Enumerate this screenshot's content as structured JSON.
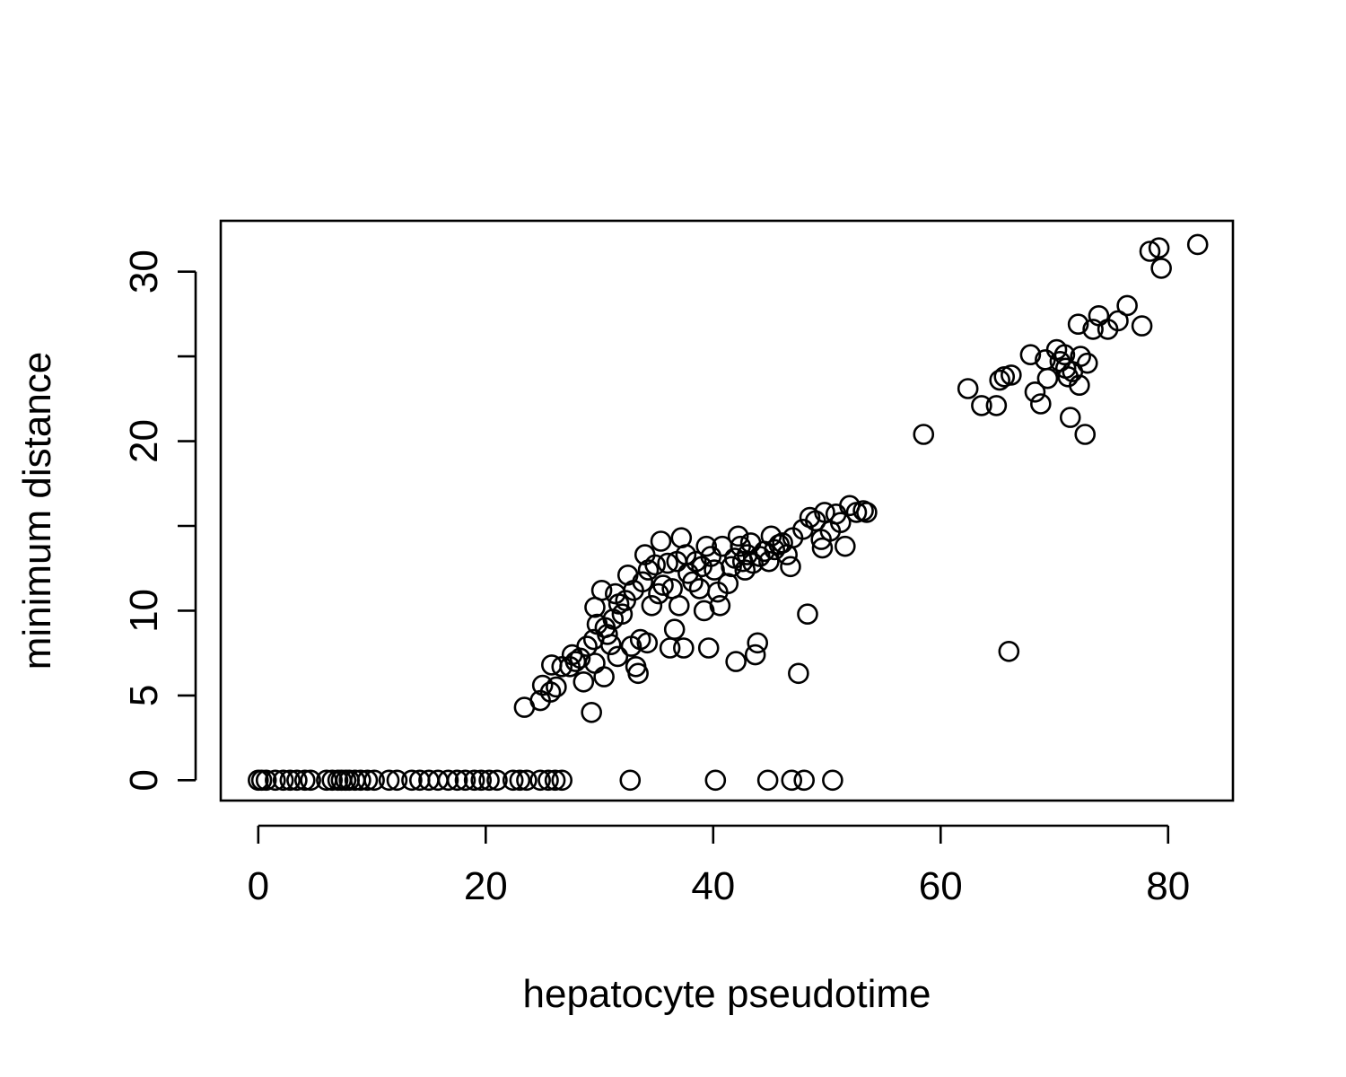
{
  "chart_data": {
    "type": "scatter",
    "title": "",
    "xlabel": "hepatocyte pseudotime",
    "ylabel": "minimum distance",
    "xlim": [
      -3.3,
      85.7
    ],
    "ylim": [
      -1.2,
      33.0
    ],
    "xticks": [
      0,
      20,
      40,
      60,
      80
    ],
    "xtick_labels": [
      "0",
      "20",
      "40",
      "60",
      "80"
    ],
    "yticks": [
      0,
      5,
      10,
      15,
      20,
      25,
      30
    ],
    "ytick_labels": [
      "0",
      "5",
      "10",
      "",
      "20",
      "",
      "30"
    ],
    "grid": false,
    "legend": "none",
    "marker": "open-circle",
    "points": [
      [
        0,
        0
      ],
      [
        0.3,
        0
      ],
      [
        0.7,
        0
      ],
      [
        1.5,
        0
      ],
      [
        2.2,
        0
      ],
      [
        2.8,
        0
      ],
      [
        3.4,
        0
      ],
      [
        4.1,
        0
      ],
      [
        4.6,
        0
      ],
      [
        6.0,
        0
      ],
      [
        6.5,
        0
      ],
      [
        7.0,
        0
      ],
      [
        7.3,
        0
      ],
      [
        7.7,
        0
      ],
      [
        8.0,
        0
      ],
      [
        8.5,
        0
      ],
      [
        9.0,
        0
      ],
      [
        9.6,
        0
      ],
      [
        10.2,
        0
      ],
      [
        11.5,
        0
      ],
      [
        12.2,
        0
      ],
      [
        13.5,
        0
      ],
      [
        14.2,
        0
      ],
      [
        15.0,
        0
      ],
      [
        15.8,
        0
      ],
      [
        16.7,
        0
      ],
      [
        17.5,
        0
      ],
      [
        18.2,
        0
      ],
      [
        19.0,
        0
      ],
      [
        19.6,
        0
      ],
      [
        20.3,
        0
      ],
      [
        21.0,
        0
      ],
      [
        22.4,
        0
      ],
      [
        23.0,
        0
      ],
      [
        23.6,
        0
      ],
      [
        24.8,
        0
      ],
      [
        25.5,
        0
      ],
      [
        26.1,
        0
      ],
      [
        26.7,
        0
      ],
      [
        32.7,
        0
      ],
      [
        40.2,
        0
      ],
      [
        44.8,
        0
      ],
      [
        46.9,
        0
      ],
      [
        48.0,
        0
      ],
      [
        50.5,
        0
      ],
      [
        23.4,
        4.3
      ],
      [
        24.8,
        4.7
      ],
      [
        25.0,
        5.6
      ],
      [
        25.7,
        5.2
      ],
      [
        26.2,
        5.5
      ],
      [
        25.8,
        6.8
      ],
      [
        26.7,
        6.7
      ],
      [
        27.4,
        6.7
      ],
      [
        27.6,
        7.4
      ],
      [
        27.9,
        7.0
      ],
      [
        28.3,
        7.2
      ],
      [
        28.6,
        5.8
      ],
      [
        28.9,
        7.9
      ],
      [
        29.3,
        4.0
      ],
      [
        29.6,
        6.9
      ],
      [
        29.5,
        8.3
      ],
      [
        29.8,
        9.2
      ],
      [
        29.6,
        10.2
      ],
      [
        30.2,
        11.2
      ],
      [
        30.5,
        9.0
      ],
      [
        30.7,
        8.6
      ],
      [
        30.4,
        6.1
      ],
      [
        31.0,
        8.0
      ],
      [
        31.2,
        9.5
      ],
      [
        31.4,
        11.0
      ],
      [
        31.7,
        10.4
      ],
      [
        31.6,
        7.3
      ],
      [
        32.0,
        9.8
      ],
      [
        32.3,
        10.6
      ],
      [
        32.5,
        12.1
      ],
      [
        32.8,
        7.9
      ],
      [
        33.0,
        11.2
      ],
      [
        33.2,
        6.7
      ],
      [
        33.4,
        6.3
      ],
      [
        33.6,
        8.3
      ],
      [
        33.8,
        11.7
      ],
      [
        34.0,
        13.3
      ],
      [
        34.2,
        8.1
      ],
      [
        34.3,
        12.4
      ],
      [
        34.6,
        10.3
      ],
      [
        34.9,
        12.7
      ],
      [
        35.2,
        11.0
      ],
      [
        35.4,
        14.1
      ],
      [
        35.6,
        11.5
      ],
      [
        36.0,
        12.8
      ],
      [
        36.2,
        7.8
      ],
      [
        36.4,
        11.3
      ],
      [
        36.6,
        8.9
      ],
      [
        36.8,
        12.9
      ],
      [
        37.0,
        10.3
      ],
      [
        37.2,
        14.3
      ],
      [
        37.4,
        7.8
      ],
      [
        37.6,
        13.3
      ],
      [
        37.8,
        12.2
      ],
      [
        38.2,
        11.7
      ],
      [
        38.5,
        12.9
      ],
      [
        38.8,
        11.3
      ],
      [
        39.0,
        12.6
      ],
      [
        39.2,
        10.0
      ],
      [
        39.4,
        13.8
      ],
      [
        39.6,
        7.8
      ],
      [
        39.8,
        13.2
      ],
      [
        40.1,
        12.4
      ],
      [
        40.4,
        11.1
      ],
      [
        40.6,
        10.3
      ],
      [
        40.8,
        13.8
      ],
      [
        41.3,
        11.6
      ],
      [
        41.6,
        12.6
      ],
      [
        41.9,
        13.1
      ],
      [
        42.0,
        7.0
      ],
      [
        42.2,
        14.4
      ],
      [
        42.4,
        13.8
      ],
      [
        42.6,
        12.9
      ],
      [
        42.8,
        12.4
      ],
      [
        43.0,
        13.3
      ],
      [
        43.3,
        14.0
      ],
      [
        43.5,
        12.8
      ],
      [
        43.7,
        7.4
      ],
      [
        43.9,
        8.1
      ],
      [
        44.1,
        13.2
      ],
      [
        44.5,
        13.5
      ],
      [
        44.9,
        12.9
      ],
      [
        45.1,
        14.4
      ],
      [
        45.4,
        13.6
      ],
      [
        45.8,
        13.9
      ],
      [
        46.1,
        14.0
      ],
      [
        46.5,
        13.3
      ],
      [
        46.8,
        12.6
      ],
      [
        47.0,
        14.3
      ],
      [
        47.5,
        6.3
      ],
      [
        47.9,
        14.8
      ],
      [
        48.3,
        9.8
      ],
      [
        48.5,
        15.5
      ],
      [
        49.0,
        15.3
      ],
      [
        49.5,
        14.2
      ],
      [
        49.6,
        13.7
      ],
      [
        49.8,
        15.8
      ],
      [
        50.3,
        14.7
      ],
      [
        50.8,
        15.7
      ],
      [
        51.2,
        15.2
      ],
      [
        51.6,
        13.8
      ],
      [
        52.0,
        16.2
      ],
      [
        52.6,
        15.8
      ],
      [
        53.2,
        15.9
      ],
      [
        53.5,
        15.8
      ],
      [
        58.5,
        20.4
      ],
      [
        62.4,
        23.1
      ],
      [
        63.6,
        22.1
      ],
      [
        64.9,
        22.1
      ],
      [
        65.2,
        23.6
      ],
      [
        65.6,
        23.8
      ],
      [
        66.0,
        7.6
      ],
      [
        66.2,
        23.9
      ],
      [
        67.9,
        25.1
      ],
      [
        68.3,
        22.9
      ],
      [
        68.8,
        22.2
      ],
      [
        69.2,
        24.8
      ],
      [
        69.4,
        23.7
      ],
      [
        70.2,
        25.4
      ],
      [
        70.5,
        24.7
      ],
      [
        70.9,
        25.1
      ],
      [
        71.0,
        24.3
      ],
      [
        71.2,
        23.8
      ],
      [
        71.4,
        21.4
      ],
      [
        71.6,
        24.1
      ],
      [
        72.1,
        26.9
      ],
      [
        72.2,
        23.3
      ],
      [
        72.3,
        25.0
      ],
      [
        72.7,
        20.4
      ],
      [
        72.9,
        24.6
      ],
      [
        73.4,
        26.6
      ],
      [
        73.9,
        27.4
      ],
      [
        74.7,
        26.6
      ],
      [
        75.6,
        27.1
      ],
      [
        76.4,
        28.0
      ],
      [
        77.7,
        26.8
      ],
      [
        78.4,
        31.2
      ],
      [
        79.2,
        31.4
      ],
      [
        79.4,
        30.2
      ],
      [
        82.6,
        31.6
      ]
    ]
  }
}
